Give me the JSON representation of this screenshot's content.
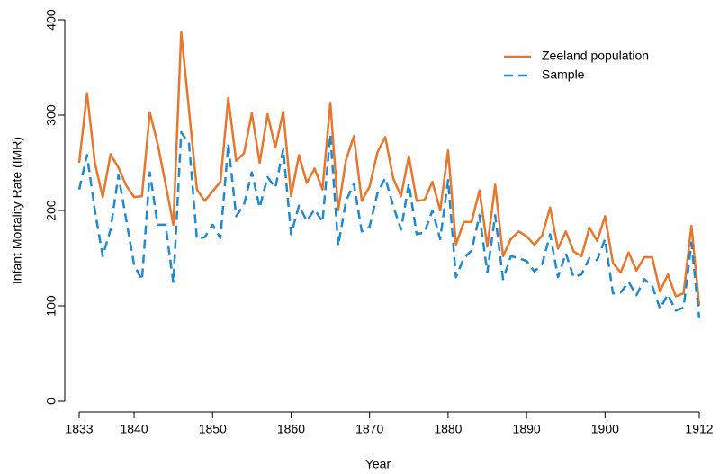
{
  "chart_data": {
    "type": "line",
    "x_label": "Year",
    "y_label": "Infant Mortality Rate (IMR)",
    "x": [
      1833,
      1834,
      1835,
      1836,
      1837,
      1838,
      1839,
      1840,
      1841,
      1842,
      1843,
      1844,
      1845,
      1846,
      1847,
      1848,
      1849,
      1850,
      1851,
      1852,
      1853,
      1854,
      1855,
      1856,
      1857,
      1858,
      1859,
      1860,
      1861,
      1862,
      1863,
      1864,
      1865,
      1866,
      1867,
      1868,
      1869,
      1870,
      1871,
      1872,
      1873,
      1874,
      1875,
      1876,
      1877,
      1878,
      1879,
      1880,
      1881,
      1882,
      1883,
      1884,
      1885,
      1886,
      1887,
      1888,
      1889,
      1890,
      1891,
      1892,
      1893,
      1894,
      1895,
      1896,
      1897,
      1898,
      1899,
      1900,
      1901,
      1902,
      1903,
      1904,
      1905,
      1906,
      1907,
      1908,
      1909,
      1910,
      1911,
      1912
    ],
    "series": [
      {
        "name": "Zeeland population",
        "color": "#e8772e",
        "dash": false,
        "values": [
          250,
          323,
          250,
          214,
          259,
          245,
          226,
          214,
          215,
          303,
          270,
          228,
          185,
          387,
          305,
          222,
          210,
          220,
          230,
          318,
          252,
          260,
          302,
          250,
          301,
          266,
          304,
          215,
          258,
          229,
          244,
          222,
          313,
          200,
          253,
          278,
          210,
          225,
          261,
          277,
          234,
          215,
          257,
          210,
          211,
          230,
          200,
          263,
          164,
          188,
          188,
          221,
          162,
          227,
          152,
          170,
          178,
          173,
          164,
          174,
          203,
          160,
          178,
          157,
          152,
          182,
          168,
          194,
          145,
          135,
          156,
          137,
          151,
          151,
          115,
          133,
          110,
          113,
          184,
          100
        ]
      },
      {
        "name": "Sample",
        "color": "#1f8ad0",
        "dash": true,
        "values": [
          222,
          258,
          200,
          152,
          180,
          237,
          190,
          143,
          127,
          240,
          185,
          185,
          124,
          282,
          270,
          170,
          172,
          185,
          171,
          270,
          194,
          206,
          240,
          203,
          235,
          224,
          264,
          175,
          205,
          189,
          201,
          188,
          280,
          163,
          210,
          228,
          178,
          183,
          218,
          234,
          205,
          180,
          228,
          175,
          177,
          200,
          170,
          232,
          130,
          150,
          158,
          195,
          135,
          195,
          128,
          152,
          150,
          147,
          136,
          144,
          175,
          130,
          155,
          130,
          133,
          150,
          148,
          170,
          113,
          114,
          125,
          111,
          128,
          121,
          97,
          112,
          95,
          98,
          166,
          87
        ]
      }
    ],
    "xlim": [
      1833,
      1912
    ],
    "xticks": [
      1833,
      1840,
      1850,
      1860,
      1870,
      1880,
      1890,
      1900,
      1912
    ],
    "ylim": [
      0,
      400
    ],
    "yticks": [
      0,
      100,
      200,
      300,
      400
    ],
    "legend": "upper right"
  }
}
